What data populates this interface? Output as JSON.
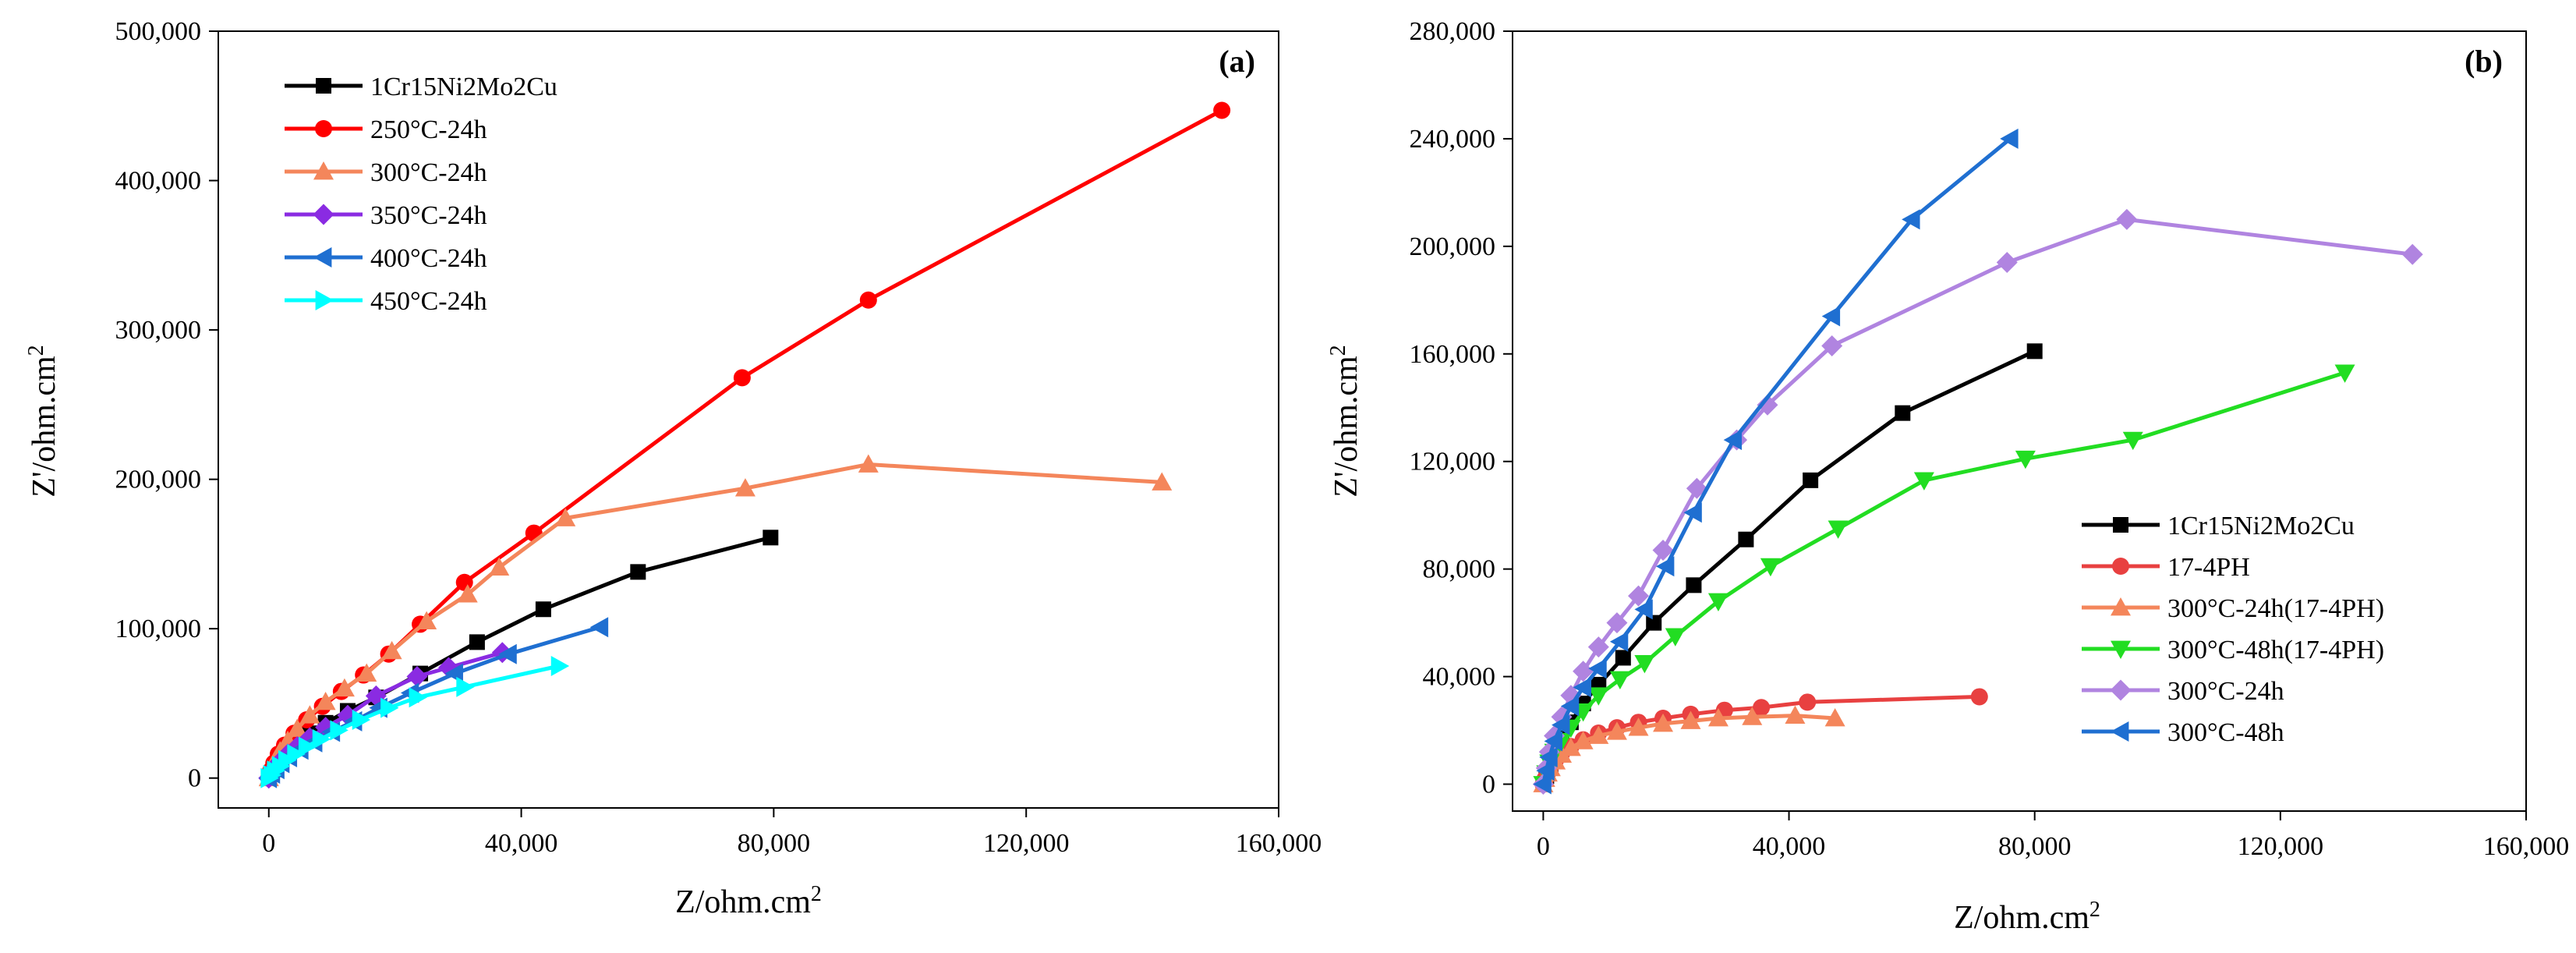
{
  "chart_data": [
    {
      "type": "line",
      "panel_label": "(a)",
      "xlabel": "Z/ohm.cm",
      "xlabel_sup": "2",
      "ylabel": "Z'/ohm.cm",
      "ylabel_sup": "2",
      "xlim": [
        -8000,
        160000
      ],
      "ylim": [
        -20000,
        500000
      ],
      "x_ticks": [
        0,
        40000,
        80000,
        120000,
        160000
      ],
      "x_tick_labels": [
        "0",
        "40,000",
        "80,000",
        "120,000",
        "160,000"
      ],
      "y_ticks": [
        0,
        100000,
        200000,
        300000,
        400000,
        500000
      ],
      "y_tick_labels": [
        "0",
        "100,000",
        "200,000",
        "300,000",
        "400,000",
        "500,000"
      ],
      "legend_position": "top-left",
      "series": [
        {
          "name": "1Cr15Ni2Mo2Cu",
          "color": "#000000",
          "marker": "square",
          "x": [
            0,
            500,
            1200,
            2000,
            3000,
            4500,
            6500,
            9000,
            12500,
            17000,
            24000,
            33000,
            43500,
            58500,
            79500
          ],
          "y": [
            0,
            3000,
            7000,
            12000,
            17000,
            23000,
            30000,
            37000,
            45000,
            54000,
            70000,
            91000,
            113000,
            138000,
            161000
          ]
        },
        {
          "name": "250°C-24h",
          "color": "#ff0000",
          "marker": "circle",
          "x": [
            0,
            300,
            800,
            1500,
            2500,
            4000,
            6000,
            8500,
            11500,
            15000,
            19000,
            24000,
            31000,
            42000,
            75000,
            95000,
            151000
          ],
          "y": [
            0,
            5000,
            10000,
            16000,
            22000,
            30000,
            39000,
            48000,
            58000,
            69000,
            83000,
            103000,
            131000,
            164000,
            268000,
            320000,
            447000
          ]
        },
        {
          "name": "300°C-24h",
          "color": "#f4865b",
          "marker": "triangle-up",
          "x": [
            0,
            500,
            1000,
            1800,
            3000,
            4500,
            6500,
            9000,
            12000,
            15500,
            19500,
            25000,
            31500,
            36500,
            47000,
            75500,
            95000,
            141500
          ],
          "y": [
            0,
            6000,
            12000,
            18000,
            25000,
            33000,
            42000,
            51000,
            60000,
            70000,
            85000,
            105000,
            123000,
            141000,
            174000,
            194000,
            210000,
            198000
          ]
        },
        {
          "name": "350°C-24h",
          "color": "#8a2be2",
          "marker": "diamond",
          "x": [
            0,
            500,
            1000,
            1800,
            3000,
            4500,
            6500,
            9000,
            12500,
            17000,
            23500,
            28500,
            37000
          ],
          "y": [
            0,
            3000,
            7000,
            11000,
            16000,
            21000,
            27000,
            34000,
            42000,
            55000,
            68000,
            74000,
            84000
          ]
        },
        {
          "name": "400°C-24h",
          "color": "#1f6fd1",
          "marker": "triangle-left",
          "x": [
            0,
            500,
            1200,
            2000,
            3200,
            5000,
            7200,
            10000,
            13500,
            17500,
            22500,
            29500,
            38000,
            52500
          ],
          "y": [
            0,
            3000,
            6000,
            10000,
            14000,
            19000,
            24000,
            31000,
            38000,
            47000,
            57000,
            70000,
            83000,
            101000
          ]
        },
        {
          "name": "450°C-24h",
          "color": "#00ffff",
          "marker": "triangle-right",
          "x": [
            0,
            400,
            1000,
            1800,
            2800,
            4200,
            6000,
            8200,
            11000,
            14500,
            19000,
            23500,
            31000,
            46000
          ],
          "y": [
            0,
            2000,
            5000,
            8000,
            12000,
            16000,
            21000,
            26000,
            32000,
            39000,
            47000,
            54000,
            61000,
            75000
          ]
        }
      ]
    },
    {
      "type": "line",
      "panel_label": "(b)",
      "xlabel": "Z/ohm.cm",
      "xlabel_sup": "2",
      "ylabel": "Z'/ohm.cm",
      "ylabel_sup": "2",
      "xlim": [
        -5000,
        160000
      ],
      "ylim": [
        -10000,
        280000
      ],
      "x_ticks": [
        0,
        40000,
        80000,
        120000,
        160000
      ],
      "x_tick_labels": [
        "0",
        "40,000",
        "80,000",
        "120,000",
        "160,000"
      ],
      "y_ticks": [
        0,
        40000,
        80000,
        120000,
        160000,
        200000,
        240000,
        280000
      ],
      "y_tick_labels": [
        "0",
        "40,000",
        "80,000",
        "120,000",
        "160,000",
        "200,000",
        "240,000",
        "280,000"
      ],
      "legend_position": "bottom-right",
      "series": [
        {
          "name": "1Cr15Ni2Mo2Cu",
          "color": "#000000",
          "marker": "square",
          "x": [
            0,
            500,
            1200,
            2000,
            3000,
            4500,
            6500,
            9000,
            13000,
            18000,
            24500,
            33000,
            43500,
            58500,
            80000
          ],
          "y": [
            0,
            3000,
            7000,
            12000,
            17000,
            23000,
            30000,
            37000,
            47000,
            60000,
            74000,
            91000,
            113000,
            138000,
            161000
          ]
        },
        {
          "name": "17-4PH",
          "color": "#e84040",
          "marker": "circle",
          "x": [
            0,
            300,
            700,
            1200,
            2000,
            3000,
            4500,
            6500,
            9000,
            12000,
            15500,
            19500,
            24000,
            29500,
            35500,
            43000,
            71000
          ],
          "y": [
            0,
            2000,
            4000,
            6500,
            9000,
            11500,
            14000,
            16500,
            19000,
            21000,
            23000,
            24500,
            26000,
            27500,
            28500,
            30500,
            32500
          ]
        },
        {
          "name": "300°C-24h(17-4PH)",
          "color": "#f4865b",
          "marker": "triangle-up",
          "x": [
            0,
            300,
            700,
            1200,
            2000,
            3000,
            4500,
            6500,
            9000,
            12000,
            15500,
            19500,
            24000,
            28500,
            34000,
            41000,
            47500
          ],
          "y": [
            0,
            2000,
            4000,
            6000,
            8500,
            11000,
            13500,
            16000,
            18000,
            19500,
            21000,
            22500,
            23500,
            24500,
            25000,
            25500,
            24500
          ]
        },
        {
          "name": "300°C-48h(17-4PH)",
          "color": "#22dd22",
          "marker": "triangle-down",
          "x": [
            0,
            500,
            1000,
            1800,
            3000,
            4500,
            6500,
            9000,
            12500,
            16500,
            21500,
            28500,
            37000,
            48000,
            62000,
            78500,
            96000,
            130500
          ],
          "y": [
            0,
            4000,
            8000,
            12000,
            16000,
            21000,
            27000,
            33000,
            39000,
            45000,
            55000,
            68000,
            81000,
            95000,
            113000,
            121000,
            128000,
            153000
          ]
        },
        {
          "name": "300°C-24h",
          "color": "#b084e0",
          "marker": "diamond",
          "x": [
            0,
            500,
            1000,
            1800,
            3000,
            4500,
            6500,
            9000,
            12000,
            15500,
            19500,
            25000,
            31500,
            36500,
            47000,
            75500,
            95000,
            141500
          ],
          "y": [
            0,
            6000,
            12000,
            18000,
            25000,
            33000,
            42000,
            51000,
            60000,
            70000,
            87000,
            110000,
            128000,
            141000,
            163000,
            194000,
            210000,
            197000
          ]
        },
        {
          "name": "300°C-48h",
          "color": "#1f6fd1",
          "marker": "triangle-left",
          "x": [
            0,
            500,
            1000,
            1800,
            3000,
            4500,
            6500,
            9000,
            12500,
            16500,
            20000,
            24500,
            31000,
            47000,
            60000,
            76000
          ],
          "y": [
            0,
            5000,
            10000,
            16000,
            22000,
            29000,
            36000,
            43000,
            53000,
            65000,
            81000,
            101000,
            128000,
            174000,
            210000,
            240000
          ]
        }
      ]
    }
  ]
}
